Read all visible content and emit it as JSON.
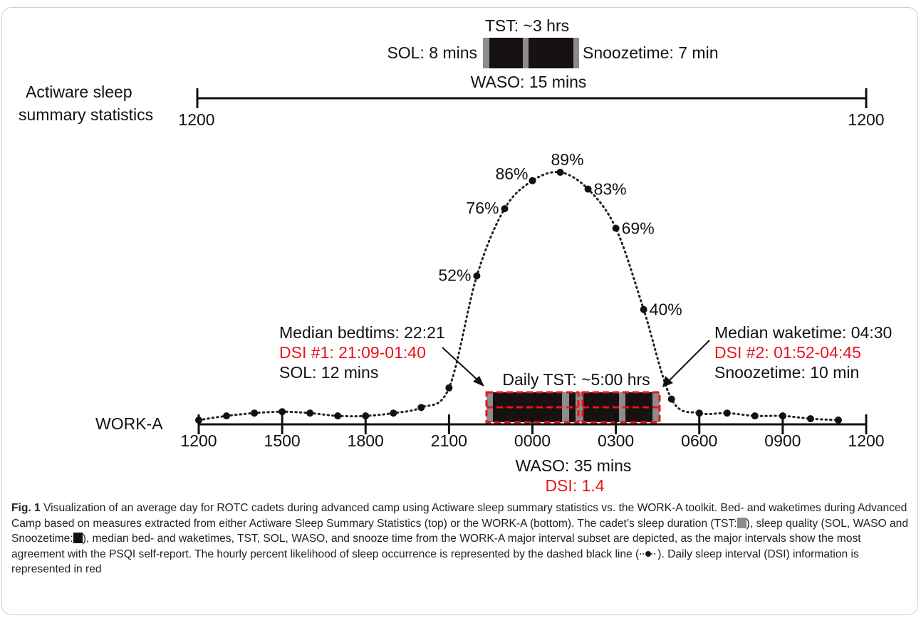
{
  "top_panel": {
    "tst": "TST: ~3 hrs",
    "sol": "SOL: 8 mins",
    "snooze": "Snoozetime: 7 min",
    "waso": "WASO: 15 mins",
    "label_line1": "Actiware sleep",
    "label_line2": "summary statistics",
    "tick_left": "1200",
    "tick_right": "1200"
  },
  "bottom_panel": {
    "label": "WORK-A",
    "ticks": [
      "1200",
      "1500",
      "1800",
      "2100",
      "0000",
      "0300",
      "0600",
      "0900",
      "1200"
    ],
    "bed_median": "Median bedtims: 22:21",
    "bed_dsi": "DSI #1: 21:09-01:40",
    "bed_sol": "SOL: 12 mins",
    "wake_median": "Median waketime: 04:30",
    "wake_dsi": "DSI #2: 01:52-04:45",
    "wake_snooze": "Snoozetime: 10 min",
    "daily_tst": "Daily TST: ~5:00 hrs",
    "waso": "WASO: 35 mins",
    "dsi": "DSI: 1.4"
  },
  "colors": {
    "dsi_red": "#e8141b",
    "sleep_black": "#171111",
    "snooze_grey": "#8c8c8c"
  },
  "chart_data": {
    "type": "line",
    "x": [
      0,
      1,
      2,
      3,
      4,
      5,
      6,
      7,
      8,
      9,
      10,
      11,
      12,
      13,
      14,
      15,
      16,
      17,
      18,
      19,
      20,
      21,
      22,
      23
    ],
    "x_tick_labels": [
      "1200",
      "1500",
      "1800",
      "2100",
      "0000",
      "0300",
      "0600",
      "0900",
      "1200"
    ],
    "values": [
      0.5,
      2,
      3,
      3.5,
      3,
      2,
      2,
      3,
      5,
      12,
      52,
      76,
      86,
      89,
      83,
      69,
      40,
      8,
      3,
      3,
      2,
      2,
      1,
      0.5
    ],
    "point_labels": [
      {
        "index": 10,
        "text": "52%"
      },
      {
        "index": 11,
        "text": "76%"
      },
      {
        "index": 12,
        "text": "86%"
      },
      {
        "index": 13,
        "text": "89%"
      },
      {
        "index": 14,
        "text": "83%"
      },
      {
        "index": 15,
        "text": "69%"
      },
      {
        "index": 16,
        "text": "40%"
      }
    ],
    "ylim": [
      0,
      100
    ],
    "line_style": "dotted",
    "grid": false
  },
  "caption": {
    "fig_label": "Fig. 1",
    "text1": " Visualization of an average day for ROTC cadets during advanced camp using Actiware sleep summary statistics vs. the WORK-A toolkit. Bed- and waketimes during Advanced Camp based on measures extracted from either Actiware Sleep Summary Statistics (top) or the WORK-A (bottom). The cadet’s sleep duration (TST:",
    "text2": "), sleep quality (SOL, WASO and Snoozetime:",
    "text3": "), median bed- and waketimes, TST, SOL, WASO, and snooze time from the WORK-A major interval subset are depicted, as the major intervals show the most agreement with the PSQI self-report. The hourly percent likelihood of sleep occurrence is represented by the dashed black line (",
    "text4": "). Daily sleep interval (DSI) information is represented in red"
  }
}
